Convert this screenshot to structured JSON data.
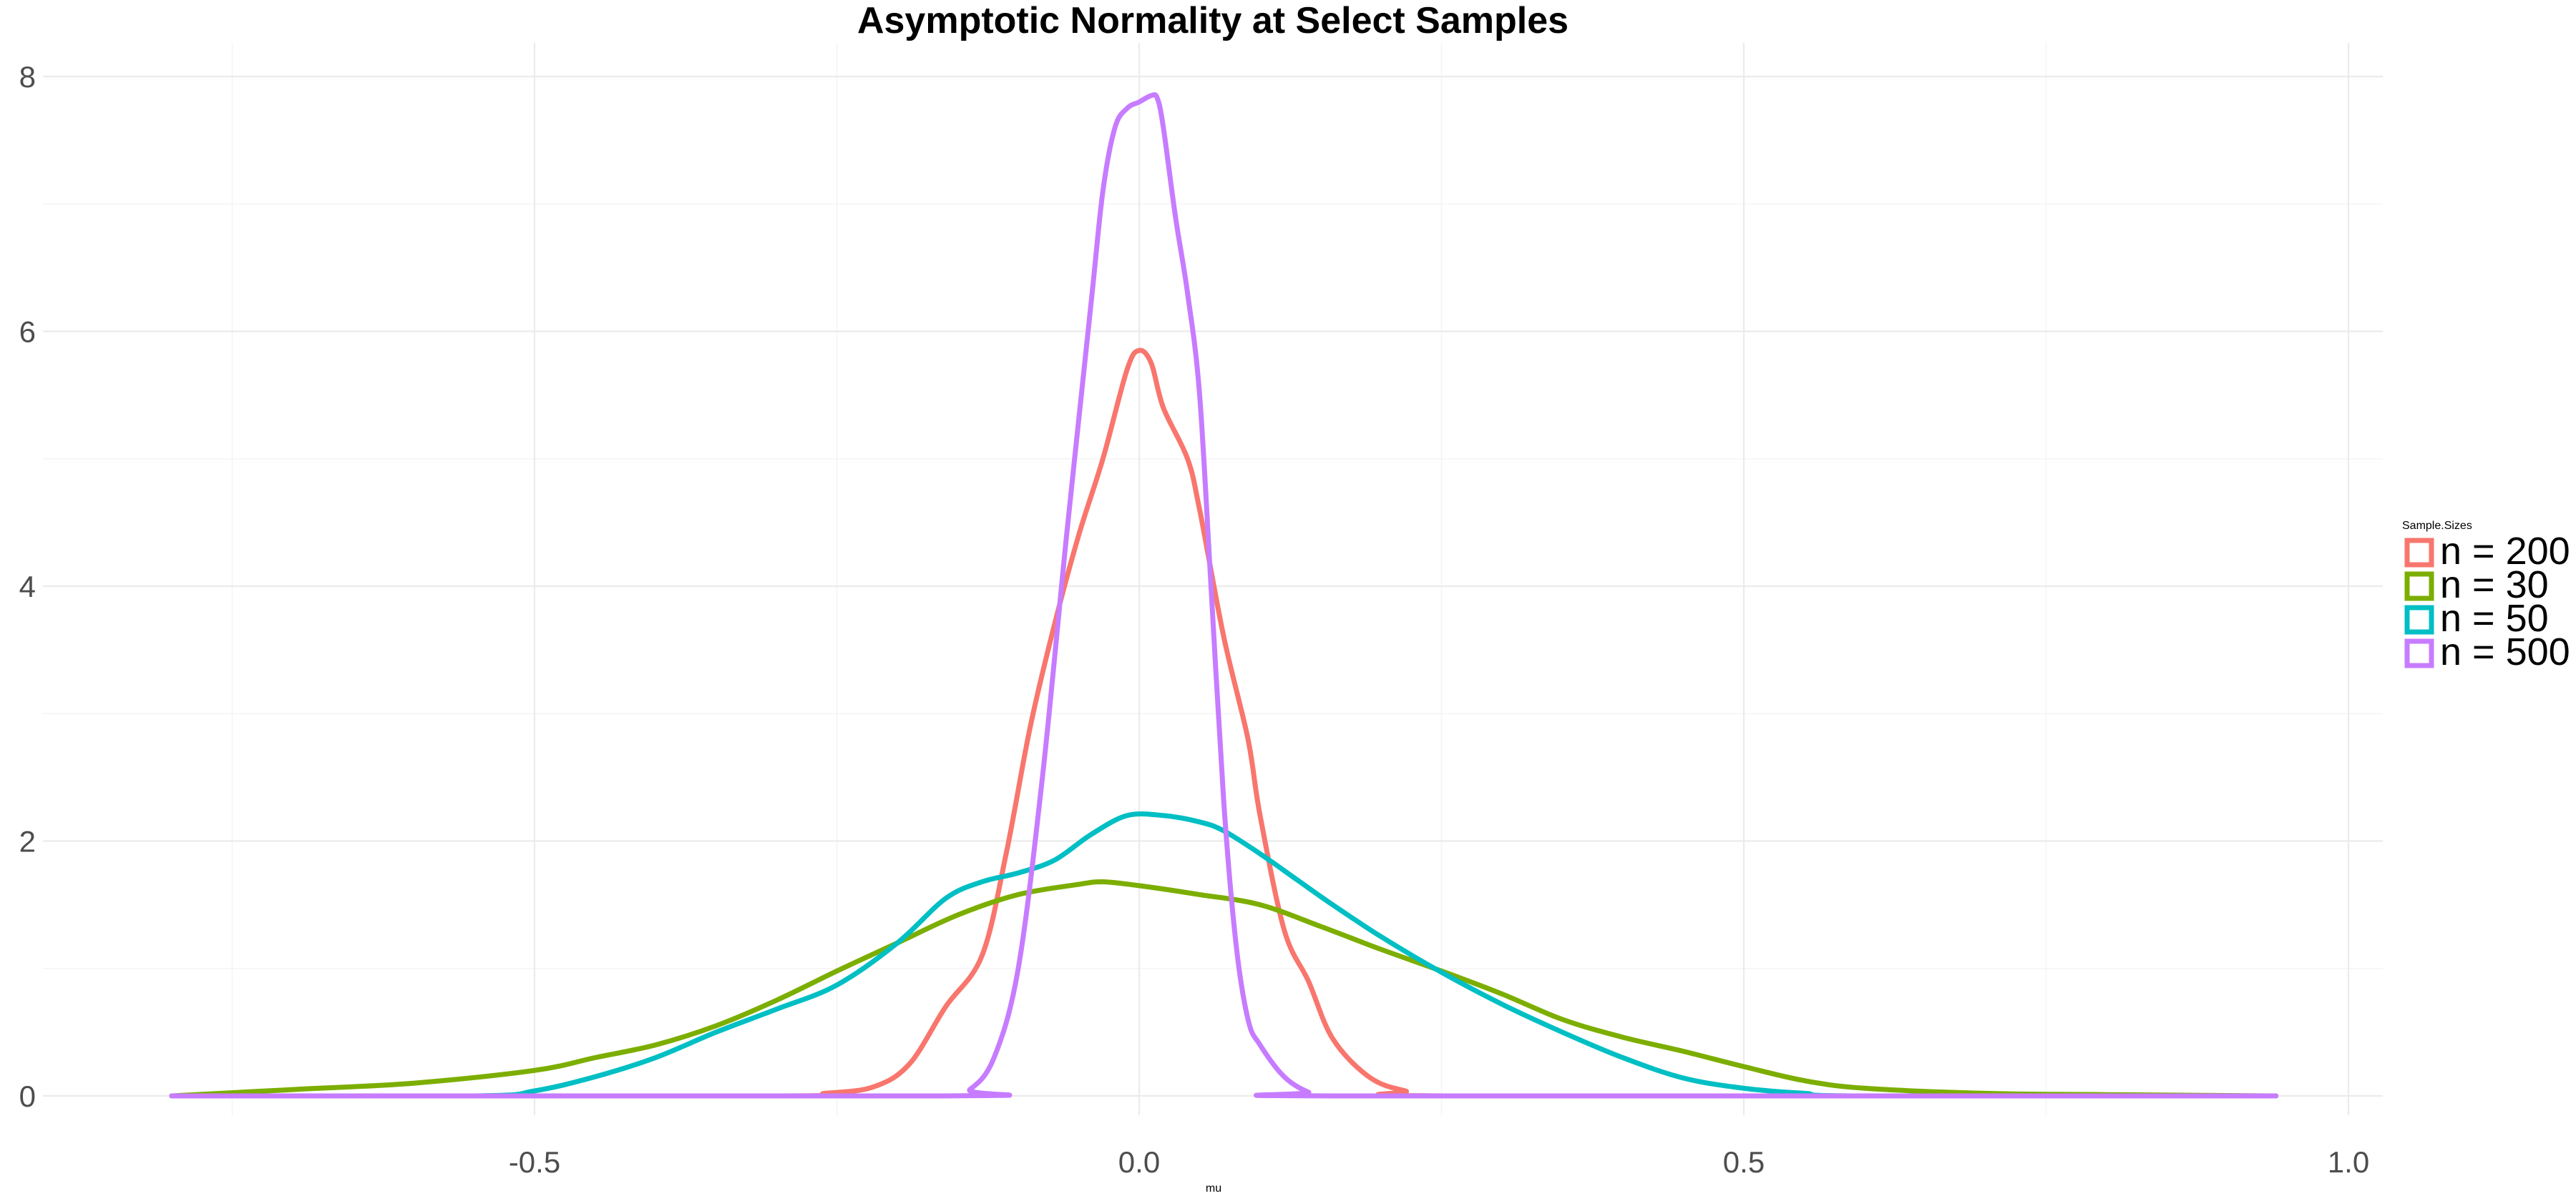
{
  "chart_data": {
    "type": "line",
    "subtype": "density",
    "title": "Asymptotic Normality at Select Samples",
    "xlabel": "mu",
    "ylabel": "",
    "xlim": [
      -0.8,
      0.94
    ],
    "ylim": [
      0,
      8
    ],
    "x_ticks": [
      -0.5,
      0.0,
      0.5,
      1.0
    ],
    "x_tick_labels": [
      "-0.5",
      "0.0",
      "0.5",
      "1.0"
    ],
    "y_ticks": [
      0,
      2,
      4,
      6,
      8
    ],
    "y_tick_labels": [
      "0",
      "2",
      "4",
      "6",
      "8"
    ],
    "x_minor_ticks": [
      -0.75,
      -0.25,
      0.25,
      0.75
    ],
    "y_minor_ticks": [
      1,
      3,
      5,
      7
    ],
    "grid": true,
    "legend": {
      "title": "Sample.Sizes",
      "position": "right"
    },
    "series": [
      {
        "name": "n = 200",
        "color": "#F8766D",
        "points": [
          [
            -0.8,
            0
          ],
          [
            -0.3,
            0
          ],
          [
            -0.26,
            0.02
          ],
          [
            -0.22,
            0.07
          ],
          [
            -0.19,
            0.25
          ],
          [
            -0.16,
            0.7
          ],
          [
            -0.13,
            1.1
          ],
          [
            -0.11,
            1.9
          ],
          [
            -0.09,
            2.9
          ],
          [
            -0.07,
            3.7
          ],
          [
            -0.05,
            4.4
          ],
          [
            -0.03,
            5.0
          ],
          [
            -0.01,
            5.7
          ],
          [
            0.0,
            5.85
          ],
          [
            0.01,
            5.75
          ],
          [
            0.02,
            5.4
          ],
          [
            0.04,
            5.0
          ],
          [
            0.05,
            4.6
          ],
          [
            0.07,
            3.6
          ],
          [
            0.09,
            2.8
          ],
          [
            0.1,
            2.2
          ],
          [
            0.12,
            1.3
          ],
          [
            0.14,
            0.9
          ],
          [
            0.16,
            0.45
          ],
          [
            0.19,
            0.15
          ],
          [
            0.22,
            0.04
          ],
          [
            0.26,
            0
          ],
          [
            0.94,
            0
          ]
        ]
      },
      {
        "name": "n = 30",
        "color": "#7CAE00",
        "points": [
          [
            -0.8,
            0
          ],
          [
            -0.7,
            0.05
          ],
          [
            -0.6,
            0.1
          ],
          [
            -0.5,
            0.2
          ],
          [
            -0.45,
            0.3
          ],
          [
            -0.4,
            0.4
          ],
          [
            -0.35,
            0.55
          ],
          [
            -0.3,
            0.75
          ],
          [
            -0.25,
            0.98
          ],
          [
            -0.2,
            1.2
          ],
          [
            -0.15,
            1.42
          ],
          [
            -0.1,
            1.58
          ],
          [
            -0.05,
            1.66
          ],
          [
            -0.03,
            1.68
          ],
          [
            0.0,
            1.65
          ],
          [
            0.05,
            1.58
          ],
          [
            0.1,
            1.5
          ],
          [
            0.15,
            1.33
          ],
          [
            0.2,
            1.15
          ],
          [
            0.25,
            0.98
          ],
          [
            0.3,
            0.8
          ],
          [
            0.35,
            0.6
          ],
          [
            0.4,
            0.46
          ],
          [
            0.45,
            0.35
          ],
          [
            0.5,
            0.23
          ],
          [
            0.55,
            0.12
          ],
          [
            0.6,
            0.06
          ],
          [
            0.7,
            0.02
          ],
          [
            0.8,
            0.01
          ],
          [
            0.94,
            0
          ]
        ]
      },
      {
        "name": "n = 50",
        "color": "#00BFC4",
        "points": [
          [
            -0.8,
            0
          ],
          [
            -0.55,
            0
          ],
          [
            -0.5,
            0.04
          ],
          [
            -0.45,
            0.15
          ],
          [
            -0.4,
            0.3
          ],
          [
            -0.35,
            0.5
          ],
          [
            -0.3,
            0.68
          ],
          [
            -0.25,
            0.87
          ],
          [
            -0.2,
            1.2
          ],
          [
            -0.16,
            1.55
          ],
          [
            -0.13,
            1.68
          ],
          [
            -0.1,
            1.75
          ],
          [
            -0.07,
            1.85
          ],
          [
            -0.04,
            2.05
          ],
          [
            -0.01,
            2.2
          ],
          [
            0.02,
            2.2
          ],
          [
            0.05,
            2.15
          ],
          [
            0.07,
            2.08
          ],
          [
            0.1,
            1.9
          ],
          [
            0.13,
            1.7
          ],
          [
            0.16,
            1.5
          ],
          [
            0.2,
            1.25
          ],
          [
            0.25,
            0.97
          ],
          [
            0.3,
            0.72
          ],
          [
            0.35,
            0.5
          ],
          [
            0.4,
            0.3
          ],
          [
            0.45,
            0.14
          ],
          [
            0.5,
            0.06
          ],
          [
            0.55,
            0.02
          ],
          [
            0.6,
            0
          ],
          [
            0.94,
            0
          ]
        ]
      },
      {
        "name": "n = 500",
        "color": "#C77CFF",
        "points": [
          [
            -0.8,
            0
          ],
          [
            -0.16,
            0
          ],
          [
            -0.14,
            0.05
          ],
          [
            -0.12,
            0.3
          ],
          [
            -0.1,
            1.0
          ],
          [
            -0.08,
            2.5
          ],
          [
            -0.06,
            4.4
          ],
          [
            -0.04,
            6.2
          ],
          [
            -0.03,
            7.1
          ],
          [
            -0.02,
            7.6
          ],
          [
            -0.01,
            7.75
          ],
          [
            0.0,
            7.8
          ],
          [
            0.01,
            7.85
          ],
          [
            0.015,
            7.83
          ],
          [
            0.02,
            7.6
          ],
          [
            0.03,
            6.9
          ],
          [
            0.04,
            6.3
          ],
          [
            0.05,
            5.5
          ],
          [
            0.06,
            3.9
          ],
          [
            0.07,
            2.3
          ],
          [
            0.08,
            1.2
          ],
          [
            0.09,
            0.6
          ],
          [
            0.1,
            0.4
          ],
          [
            0.12,
            0.15
          ],
          [
            0.14,
            0.03
          ],
          [
            0.16,
            0
          ],
          [
            0.94,
            0
          ]
        ]
      }
    ]
  }
}
